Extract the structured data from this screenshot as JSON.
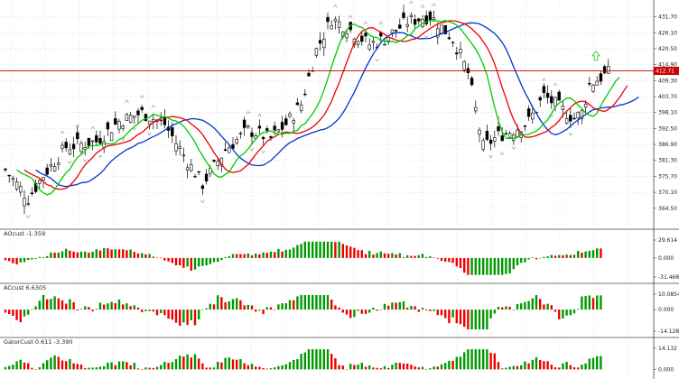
{
  "chart_data": [
    {
      "type": "candlestick",
      "pane": "price",
      "ylim": [
        360.0,
        436.0
      ],
      "yticks": [
        "431.70",
        "426.10",
        "420.50",
        "414.90",
        "409.30",
        "403.70",
        "398.10",
        "392.50",
        "386.90",
        "381.30",
        "375.70",
        "370.10",
        "364.50"
      ],
      "current_price": "412.71",
      "grid": true,
      "colors": {
        "bull": "#ffffff",
        "bear": "#000000",
        "outline": "#000000",
        "fast_ma": "#00cc00",
        "mid_ma": "#ee0000",
        "slow_ma": "#0033cc",
        "price_line": "#cc0000",
        "arrow": "#33cc33"
      }
    },
    {
      "type": "histogram",
      "pane": "ao",
      "title": "AOcust -1.359",
      "ylim": [
        -31.468,
        29.614
      ],
      "yticks": [
        "29.614",
        "0.000",
        "-31.468"
      ],
      "colors": {
        "up": "#009900",
        "down": "#ee0000"
      }
    },
    {
      "type": "histogram",
      "pane": "ac",
      "title": "ACcust 6.6305",
      "ylim": [
        -14.128,
        10.0854
      ],
      "yticks": [
        "10.0854",
        "0.000",
        "-14.128"
      ],
      "colors": {
        "up": "#009900",
        "down": "#ee0000"
      }
    },
    {
      "type": "histogram",
      "pane": "gator",
      "title": "GatorCust 0.611 -3.390",
      "ylim": [
        -4.0,
        14.132
      ],
      "yticks": [
        "14.132",
        "0.000"
      ],
      "colors": {
        "up": "#009900",
        "down": "#ee0000"
      }
    }
  ]
}
